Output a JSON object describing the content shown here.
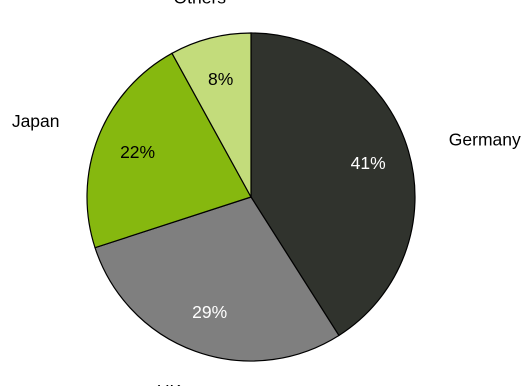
{
  "chart_data": {
    "type": "pie",
    "title": "",
    "start_angle": "12 o'clock",
    "direction": "clockwise",
    "slices": [
      {
        "label": "Germany",
        "value": 41,
        "value_label": "41%",
        "color": "#30332d",
        "value_label_color": "#ffffff"
      },
      {
        "label": "UK",
        "value": 29,
        "value_label": "29%",
        "color": "#7f7f7f",
        "value_label_color": "#ffffff"
      },
      {
        "label": "Japan",
        "value": 22,
        "value_label": "22%",
        "color": "#86b80f",
        "value_label_color": "#000000"
      },
      {
        "label": "Others",
        "value": 8,
        "value_label": "8%",
        "color": "#c3dc7b",
        "value_label_color": "#000000"
      }
    ]
  }
}
